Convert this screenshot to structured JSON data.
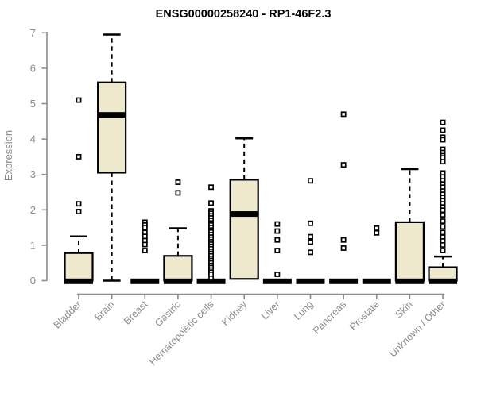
{
  "chart_data": {
    "type": "boxplot",
    "title": "ENSG00000258240 - RP1-46F2.3",
    "ylabel": "Expression",
    "xlabel": "",
    "ylim": [
      0,
      7
    ],
    "yticks": [
      0,
      1,
      2,
      3,
      4,
      5,
      6,
      7
    ],
    "grid": false,
    "legend": "none",
    "categories": [
      "Bladder",
      "Brain",
      "Breast",
      "Gastric",
      "Hematopoietic cells",
      "Kidney",
      "Liver",
      "Lung",
      "Pancreas",
      "Prostate",
      "Skin",
      "Unknown / Other"
    ],
    "series": [
      {
        "category": "Bladder",
        "whisker_low": 0,
        "q1": 0,
        "median": 0,
        "q3": 0.78,
        "whisker_high": 1.25,
        "outliers": [
          5.1,
          3.5,
          2.17,
          1.95
        ]
      },
      {
        "category": "Brain",
        "whisker_low": 0,
        "q1": 3.05,
        "median": 4.7,
        "q3": 5.6,
        "whisker_high": 6.95,
        "outliers": []
      },
      {
        "category": "Breast",
        "whisker_low": 0,
        "q1": 0,
        "median": 0,
        "q3": 0,
        "whisker_high": 0,
        "outliers": [
          1.65,
          1.57,
          1.5,
          1.36,
          1.25,
          1.13,
          1.02,
          0.85
        ]
      },
      {
        "category": "Gastric",
        "whisker_low": 0,
        "q1": 0,
        "median": 0,
        "q3": 0.7,
        "whisker_high": 1.48,
        "outliers": [
          2.78,
          2.48
        ]
      },
      {
        "category": "Hematopoietic cells",
        "whisker_low": 0,
        "q1": 0,
        "median": 0,
        "q3": 0,
        "whisker_high": 0,
        "outliers": [
          2.64,
          2.19,
          1.97,
          1.9,
          1.83,
          1.77,
          1.7,
          1.63,
          1.57,
          1.5,
          1.43,
          1.37,
          1.3,
          1.23,
          1.17,
          1.1,
          1.03,
          0.97,
          0.9,
          0.83,
          0.77,
          0.7,
          0.63,
          0.57,
          0.5,
          0.43,
          0.37,
          0.3,
          0.24,
          0.18,
          0.07
        ]
      },
      {
        "category": "Kidney",
        "whisker_low": 0.05,
        "q1": 0.05,
        "median": 1.9,
        "q3": 2.85,
        "whisker_high": 4.02,
        "outliers": []
      },
      {
        "category": "Liver",
        "whisker_low": 0,
        "q1": 0,
        "median": 0,
        "q3": 0,
        "whisker_high": 0,
        "outliers": [
          1.6,
          1.4,
          1.15,
          0.85,
          0.18
        ]
      },
      {
        "category": "Lung",
        "whisker_low": 0,
        "q1": 0,
        "median": 0,
        "q3": 0,
        "whisker_high": 0,
        "outliers": [
          2.82,
          1.62,
          1.24,
          1.09,
          0.8
        ]
      },
      {
        "category": "Pancreas",
        "whisker_low": 0,
        "q1": 0,
        "median": 0,
        "q3": 0,
        "whisker_high": 0,
        "outliers": [
          4.7,
          3.27,
          1.15,
          0.92
        ]
      },
      {
        "category": "Prostate",
        "whisker_low": 0,
        "q1": 0,
        "median": 0,
        "q3": 0,
        "whisker_high": 0,
        "outliers": [
          1.48,
          1.35
        ]
      },
      {
        "category": "Skin",
        "whisker_low": 0,
        "q1": 0,
        "median": 0,
        "q3": 1.65,
        "whisker_high": 3.15,
        "outliers": []
      },
      {
        "category": "Unknown / Other",
        "whisker_low": 0,
        "q1": 0,
        "median": 0,
        "q3": 0.38,
        "whisker_high": 0.68,
        "outliers": [
          4.47,
          4.25,
          4.05,
          3.98,
          3.71,
          3.62,
          3.53,
          3.47,
          3.36,
          3.04,
          2.93,
          2.82,
          2.73,
          2.64,
          2.53,
          2.44,
          2.35,
          2.26,
          2.17,
          2.08,
          1.99,
          1.86,
          1.68,
          1.52,
          1.36,
          1.23,
          1.12,
          1.01,
          0.85
        ]
      }
    ],
    "colors": {
      "box_fill": "#EEE8CD",
      "box_stroke": "#000000",
      "median": "#000000",
      "whisker": "#000000",
      "outlier_stroke": "#000000",
      "outlier_fill": "#ffffff",
      "axis": "#8b8b8b",
      "tick_label": "#8b8b8b",
      "title": "#000000",
      "background": "#ffffff"
    }
  }
}
